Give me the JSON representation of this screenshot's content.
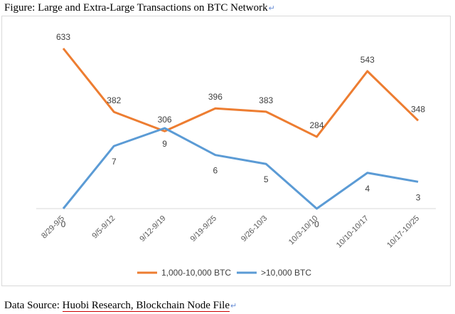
{
  "figure": {
    "title": "Figure: Large and Extra-Large Transactions on BTC Network"
  },
  "source": {
    "prefix": "Data Source: ",
    "text": "Huobi Research, Blockchain Node File"
  },
  "chart_data": {
    "type": "line",
    "title": "Figure: Large and Extra-Large Transactions on BTC Network",
    "categories": [
      "8/29-9/5",
      "9/5-9/12",
      "9/12-9/19",
      "9/19-9/25",
      "9/26-10/3",
      "10/3-10/10",
      "10/10-10/17",
      "10/17-10/25"
    ],
    "series": [
      {
        "name": "1,000-10,000 BTC",
        "color": "#ed7d31",
        "values": [
          633,
          382,
          306,
          396,
          383,
          284,
          543,
          348
        ],
        "labels_above": [
          true,
          true,
          true,
          true,
          true,
          true,
          true,
          true
        ]
      },
      {
        "name": ">10,000 BTC",
        "color": "#5b9bd5",
        "values": [
          0,
          7,
          9,
          6,
          5,
          0,
          4,
          3
        ],
        "labels_above": [
          false,
          false,
          false,
          false,
          false,
          false,
          false,
          false
        ]
      }
    ],
    "legend_position": "bottom",
    "grid": false,
    "xlabel": "",
    "ylabel": ""
  }
}
